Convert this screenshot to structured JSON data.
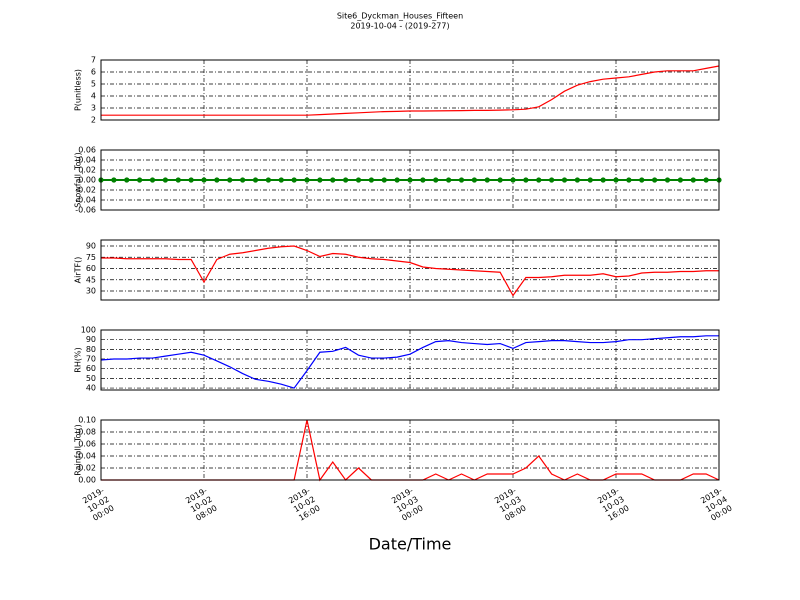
{
  "title": "Site6_Dyckman_Houses_Fifteen",
  "subtitle": "2019-10-04 - (2019-277)",
  "xlabel": "Date/Time",
  "chart_data": [
    {
      "type": "line",
      "ylabel": "P(unitless)",
      "color": "#ff0000",
      "grid": true,
      "ylim": [
        2,
        7
      ],
      "yticks": [
        2,
        3,
        4,
        5,
        6,
        7
      ],
      "xlim": [
        "2019-10-02 00:00",
        "2019-10-04 00:00"
      ],
      "xticks": [
        "2019-10-02 00:00",
        "2019-10-02 08:00",
        "2019-10-02 16:00",
        "2019-10-03 00:00",
        "2019-10-03 08:00",
        "2019-10-03 16:00",
        "2019-10-04 00:00"
      ],
      "x": [
        "2019-10-02 00:00",
        "2019-10-02 01:00",
        "2019-10-02 02:00",
        "2019-10-02 03:00",
        "2019-10-02 04:00",
        "2019-10-02 05:00",
        "2019-10-02 06:00",
        "2019-10-02 07:00",
        "2019-10-02 08:00",
        "2019-10-02 09:00",
        "2019-10-02 10:00",
        "2019-10-02 11:00",
        "2019-10-02 12:00",
        "2019-10-02 13:00",
        "2019-10-02 14:00",
        "2019-10-02 15:00",
        "2019-10-02 16:00",
        "2019-10-02 17:00",
        "2019-10-02 18:00",
        "2019-10-02 19:00",
        "2019-10-02 20:00",
        "2019-10-02 21:00",
        "2019-10-02 22:00",
        "2019-10-02 23:00",
        "2019-10-03 00:00",
        "2019-10-03 01:00",
        "2019-10-03 02:00",
        "2019-10-03 03:00",
        "2019-10-03 04:00",
        "2019-10-03 05:00",
        "2019-10-03 06:00",
        "2019-10-03 07:00",
        "2019-10-03 08:00",
        "2019-10-03 09:00",
        "2019-10-03 10:00",
        "2019-10-03 11:00",
        "2019-10-03 12:00",
        "2019-10-03 13:00",
        "2019-10-03 14:00",
        "2019-10-03 15:00",
        "2019-10-03 16:00",
        "2019-10-03 17:00",
        "2019-10-03 18:00",
        "2019-10-03 19:00",
        "2019-10-03 20:00",
        "2019-10-03 21:00",
        "2019-10-03 22:00",
        "2019-10-03 23:00",
        "2019-10-04 00:00"
      ],
      "values": [
        2.4,
        2.4,
        2.4,
        2.4,
        2.4,
        2.4,
        2.4,
        2.4,
        2.4,
        2.4,
        2.4,
        2.4,
        2.4,
        2.4,
        2.4,
        2.4,
        2.4,
        2.45,
        2.5,
        2.55,
        2.6,
        2.65,
        2.7,
        2.72,
        2.75,
        2.75,
        2.76,
        2.77,
        2.78,
        2.8,
        2.8,
        2.82,
        2.85,
        2.9,
        3.1,
        3.7,
        4.4,
        4.9,
        5.2,
        5.4,
        5.5,
        5.6,
        5.8,
        6.0,
        6.1,
        6.1,
        6.1,
        6.3,
        6.5
      ]
    },
    {
      "type": "line",
      "ylabel": "Snowfall_Tot()",
      "color": "#008000",
      "marker": "o",
      "grid": true,
      "ylim": [
        -0.06,
        0.06
      ],
      "yticks": [
        -0.06,
        -0.04,
        -0.02,
        {
          "value": 0,
          "label": "0.00"
        },
        0.02,
        0.04,
        0.06
      ],
      "xlim": [
        "2019-10-02 00:00",
        "2019-10-04 00:00"
      ],
      "xticks": [
        "2019-10-02 00:00",
        "2019-10-02 08:00",
        "2019-10-02 16:00",
        "2019-10-03 00:00",
        "2019-10-03 08:00",
        "2019-10-03 16:00",
        "2019-10-04 00:00"
      ],
      "x": [
        "2019-10-02 00:00",
        "2019-10-02 01:00",
        "2019-10-02 02:00",
        "2019-10-02 03:00",
        "2019-10-02 04:00",
        "2019-10-02 05:00",
        "2019-10-02 06:00",
        "2019-10-02 07:00",
        "2019-10-02 08:00",
        "2019-10-02 09:00",
        "2019-10-02 10:00",
        "2019-10-02 11:00",
        "2019-10-02 12:00",
        "2019-10-02 13:00",
        "2019-10-02 14:00",
        "2019-10-02 15:00",
        "2019-10-02 16:00",
        "2019-10-02 17:00",
        "2019-10-02 18:00",
        "2019-10-02 19:00",
        "2019-10-02 20:00",
        "2019-10-02 21:00",
        "2019-10-02 22:00",
        "2019-10-02 23:00",
        "2019-10-03 00:00",
        "2019-10-03 01:00",
        "2019-10-03 02:00",
        "2019-10-03 03:00",
        "2019-10-03 04:00",
        "2019-10-03 05:00",
        "2019-10-03 06:00",
        "2019-10-03 07:00",
        "2019-10-03 08:00",
        "2019-10-03 09:00",
        "2019-10-03 10:00",
        "2019-10-03 11:00",
        "2019-10-03 12:00",
        "2019-10-03 13:00",
        "2019-10-03 14:00",
        "2019-10-03 15:00",
        "2019-10-03 16:00",
        "2019-10-03 17:00",
        "2019-10-03 18:00",
        "2019-10-03 19:00",
        "2019-10-03 20:00",
        "2019-10-03 21:00",
        "2019-10-03 22:00",
        "2019-10-03 23:00",
        "2019-10-04 00:00"
      ],
      "values": [
        0,
        0,
        0,
        0,
        0,
        0,
        0,
        0,
        0,
        0,
        0,
        0,
        0,
        0,
        0,
        0,
        0,
        0,
        0,
        0,
        0,
        0,
        0,
        0,
        0,
        0,
        0,
        0,
        0,
        0,
        0,
        0,
        0,
        0,
        0,
        0,
        0,
        0,
        0,
        0,
        0,
        0,
        0,
        0,
        0,
        0,
        0,
        0,
        0
      ]
    },
    {
      "type": "line",
      "ylabel": "AirTF()",
      "color": "#ff0000",
      "grid": true,
      "ylim": [
        18,
        98
      ],
      "yticks": [
        30,
        45,
        60,
        75,
        90
      ],
      "xlim": [
        "2019-10-02 00:00",
        "2019-10-04 00:00"
      ],
      "xticks": [
        "2019-10-02 00:00",
        "2019-10-02 08:00",
        "2019-10-02 16:00",
        "2019-10-03 00:00",
        "2019-10-03 08:00",
        "2019-10-03 16:00",
        "2019-10-04 00:00"
      ],
      "x": [
        "2019-10-02 00:00",
        "2019-10-02 01:00",
        "2019-10-02 02:00",
        "2019-10-02 03:00",
        "2019-10-02 04:00",
        "2019-10-02 05:00",
        "2019-10-02 06:00",
        "2019-10-02 07:00",
        "2019-10-02 08:00",
        "2019-10-02 09:00",
        "2019-10-02 10:00",
        "2019-10-02 11:00",
        "2019-10-02 12:00",
        "2019-10-02 13:00",
        "2019-10-02 14:00",
        "2019-10-02 15:00",
        "2019-10-02 16:00",
        "2019-10-02 17:00",
        "2019-10-02 18:00",
        "2019-10-02 19:00",
        "2019-10-02 20:00",
        "2019-10-02 21:00",
        "2019-10-02 22:00",
        "2019-10-02 23:00",
        "2019-10-03 00:00",
        "2019-10-03 01:00",
        "2019-10-03 02:00",
        "2019-10-03 03:00",
        "2019-10-03 04:00",
        "2019-10-03 05:00",
        "2019-10-03 06:00",
        "2019-10-03 07:00",
        "2019-10-03 08:00",
        "2019-10-03 09:00",
        "2019-10-03 10:00",
        "2019-10-03 11:00",
        "2019-10-03 12:00",
        "2019-10-03 13:00",
        "2019-10-03 14:00",
        "2019-10-03 15:00",
        "2019-10-03 16:00",
        "2019-10-03 17:00",
        "2019-10-03 18:00",
        "2019-10-03 19:00",
        "2019-10-03 20:00",
        "2019-10-03 21:00",
        "2019-10-03 22:00",
        "2019-10-03 23:00",
        "2019-10-04 00:00"
      ],
      "values": [
        74,
        74,
        73,
        73,
        73,
        73,
        72,
        72,
        42,
        72,
        79,
        81,
        84,
        87,
        89,
        90,
        84,
        76,
        80,
        79,
        75,
        73,
        72,
        70,
        68,
        62,
        60,
        59,
        58,
        57,
        56,
        55,
        24,
        48,
        48,
        49,
        51,
        51,
        51,
        53,
        49,
        50,
        54,
        55,
        55,
        56,
        56,
        57,
        57
      ]
    },
    {
      "type": "line",
      "ylabel": "RH(%)",
      "color": "#0000ff",
      "grid": true,
      "ylim": [
        38,
        100
      ],
      "yticks": [
        40,
        50,
        60,
        70,
        80,
        90,
        100
      ],
      "xlim": [
        "2019-10-02 00:00",
        "2019-10-04 00:00"
      ],
      "xticks": [
        "2019-10-02 00:00",
        "2019-10-02 08:00",
        "2019-10-02 16:00",
        "2019-10-03 00:00",
        "2019-10-03 08:00",
        "2019-10-03 16:00",
        "2019-10-04 00:00"
      ],
      "x": [
        "2019-10-02 00:00",
        "2019-10-02 01:00",
        "2019-10-02 02:00",
        "2019-10-02 03:00",
        "2019-10-02 04:00",
        "2019-10-02 05:00",
        "2019-10-02 06:00",
        "2019-10-02 07:00",
        "2019-10-02 08:00",
        "2019-10-02 09:00",
        "2019-10-02 10:00",
        "2019-10-02 11:00",
        "2019-10-02 12:00",
        "2019-10-02 13:00",
        "2019-10-02 14:00",
        "2019-10-02 15:00",
        "2019-10-02 16:00",
        "2019-10-02 17:00",
        "2019-10-02 18:00",
        "2019-10-02 19:00",
        "2019-10-02 20:00",
        "2019-10-02 21:00",
        "2019-10-02 22:00",
        "2019-10-02 23:00",
        "2019-10-03 00:00",
        "2019-10-03 01:00",
        "2019-10-03 02:00",
        "2019-10-03 03:00",
        "2019-10-03 04:00",
        "2019-10-03 05:00",
        "2019-10-03 06:00",
        "2019-10-03 07:00",
        "2019-10-03 08:00",
        "2019-10-03 09:00",
        "2019-10-03 10:00",
        "2019-10-03 11:00",
        "2019-10-03 12:00",
        "2019-10-03 13:00",
        "2019-10-03 14:00",
        "2019-10-03 15:00",
        "2019-10-03 16:00",
        "2019-10-03 17:00",
        "2019-10-03 18:00",
        "2019-10-03 19:00",
        "2019-10-03 20:00",
        "2019-10-03 21:00",
        "2019-10-03 22:00",
        "2019-10-03 23:00",
        "2019-10-04 00:00"
      ],
      "values": [
        69,
        70,
        70,
        71,
        71,
        73,
        75,
        77,
        74,
        68,
        62,
        55,
        49,
        47,
        44,
        40,
        58,
        77,
        78,
        82,
        74,
        71,
        71,
        72,
        75,
        82,
        88,
        89,
        87,
        86,
        85,
        86,
        81,
        87,
        88,
        89,
        89,
        88,
        87,
        87,
        88,
        90,
        90,
        91,
        92,
        93,
        93,
        94,
        94
      ]
    },
    {
      "type": "line",
      "ylabel": "Rainfall_Tot()",
      "color": "#ff0000",
      "grid": true,
      "ylim": [
        0,
        0.1
      ],
      "yticks": [
        {
          "value": 0,
          "label": "0.00"
        },
        0.02,
        0.04,
        0.06,
        0.08,
        {
          "value": 0.1,
          "label": "0.10"
        }
      ],
      "xlim": [
        "2019-10-02 00:00",
        "2019-10-04 00:00"
      ],
      "xticks": [
        "2019-10-02 00:00",
        "2019-10-02 08:00",
        "2019-10-02 16:00",
        "2019-10-03 00:00",
        "2019-10-03 08:00",
        "2019-10-03 16:00",
        "2019-10-04 00:00"
      ],
      "x": [
        "2019-10-02 00:00",
        "2019-10-02 01:00",
        "2019-10-02 02:00",
        "2019-10-02 03:00",
        "2019-10-02 04:00",
        "2019-10-02 05:00",
        "2019-10-02 06:00",
        "2019-10-02 07:00",
        "2019-10-02 08:00",
        "2019-10-02 09:00",
        "2019-10-02 10:00",
        "2019-10-02 11:00",
        "2019-10-02 12:00",
        "2019-10-02 13:00",
        "2019-10-02 14:00",
        "2019-10-02 15:00",
        "2019-10-02 16:00",
        "2019-10-02 17:00",
        "2019-10-02 18:00",
        "2019-10-02 19:00",
        "2019-10-02 20:00",
        "2019-10-02 21:00",
        "2019-10-02 22:00",
        "2019-10-02 23:00",
        "2019-10-03 00:00",
        "2019-10-03 01:00",
        "2019-10-03 02:00",
        "2019-10-03 03:00",
        "2019-10-03 04:00",
        "2019-10-03 05:00",
        "2019-10-03 06:00",
        "2019-10-03 07:00",
        "2019-10-03 08:00",
        "2019-10-03 09:00",
        "2019-10-03 10:00",
        "2019-10-03 11:00",
        "2019-10-03 12:00",
        "2019-10-03 13:00",
        "2019-10-03 14:00",
        "2019-10-03 15:00",
        "2019-10-03 16:00",
        "2019-10-03 17:00",
        "2019-10-03 18:00",
        "2019-10-03 19:00",
        "2019-10-03 20:00",
        "2019-10-03 21:00",
        "2019-10-03 22:00",
        "2019-10-03 23:00",
        "2019-10-04 00:00"
      ],
      "values": [
        0,
        0,
        0,
        0,
        0,
        0,
        0,
        0,
        0,
        0,
        0,
        0,
        0,
        0,
        0,
        0,
        0.1,
        0,
        0.03,
        0,
        0.02,
        0,
        0,
        0,
        0,
        0,
        0.01,
        0,
        0.01,
        0,
        0.01,
        0.01,
        0.01,
        0.02,
        0.04,
        0.01,
        0,
        0.01,
        0,
        0,
        0.01,
        0.01,
        0.01,
        0,
        0,
        0,
        0.01,
        0.01,
        0
      ]
    }
  ]
}
